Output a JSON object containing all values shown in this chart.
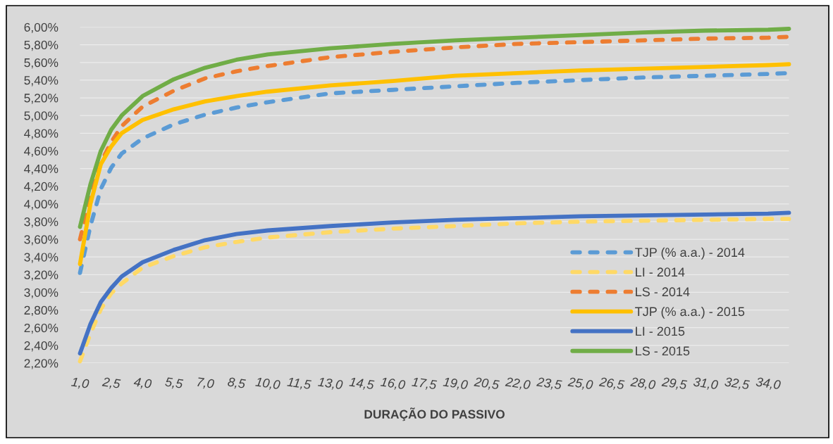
{
  "chart_data": {
    "type": "line",
    "xlabel": "DURAÇÃO DO PASSIVO",
    "x": [
      1,
      1.5,
      2,
      2.5,
      3,
      4,
      5.5,
      7,
      8.5,
      10,
      13,
      16,
      19,
      22,
      25,
      28,
      31,
      34,
      35
    ],
    "xlim": [
      1,
      35
    ],
    "xticks": [
      {
        "value": 1,
        "label": "1,0"
      },
      {
        "value": 2.5,
        "label": "2,5"
      },
      {
        "value": 4,
        "label": "4,0"
      },
      {
        "value": 5.5,
        "label": "5,5"
      },
      {
        "value": 7,
        "label": "7,0"
      },
      {
        "value": 8.5,
        "label": "8,5"
      },
      {
        "value": 10,
        "label": "10,0"
      },
      {
        "value": 11.5,
        "label": "11,5"
      },
      {
        "value": 13,
        "label": "13,0"
      },
      {
        "value": 14.5,
        "label": "14,5"
      },
      {
        "value": 16,
        "label": "16,0"
      },
      {
        "value": 17.5,
        "label": "17,5"
      },
      {
        "value": 19,
        "label": "19,0"
      },
      {
        "value": 20.5,
        "label": "20,5"
      },
      {
        "value": 22,
        "label": "22,0"
      },
      {
        "value": 23.5,
        "label": "23,5"
      },
      {
        "value": 25,
        "label": "25,0"
      },
      {
        "value": 26.5,
        "label": "26,5"
      },
      {
        "value": 28,
        "label": "28,0"
      },
      {
        "value": 29.5,
        "label": "29,5"
      },
      {
        "value": 31,
        "label": "31,0"
      },
      {
        "value": 32.5,
        "label": "32,5"
      },
      {
        "value": 34,
        "label": "34,0"
      }
    ],
    "ylim": [
      2.2,
      6.0
    ],
    "yticks": [
      {
        "value": 2.2,
        "label": "2,20%"
      },
      {
        "value": 2.4,
        "label": "2,40%"
      },
      {
        "value": 2.6,
        "label": "2,60%"
      },
      {
        "value": 2.8,
        "label": "2,80%"
      },
      {
        "value": 3.0,
        "label": "3,00%"
      },
      {
        "value": 3.2,
        "label": "3,20%"
      },
      {
        "value": 3.4,
        "label": "3,40%"
      },
      {
        "value": 3.6,
        "label": "3,60%"
      },
      {
        "value": 3.8,
        "label": "3,80%"
      },
      {
        "value": 4.0,
        "label": "4,00%"
      },
      {
        "value": 4.2,
        "label": "4,20%"
      },
      {
        "value": 4.4,
        "label": "4,40%"
      },
      {
        "value": 4.6,
        "label": "4,60%"
      },
      {
        "value": 4.8,
        "label": "4,80%"
      },
      {
        "value": 5.0,
        "label": "5,00%"
      },
      {
        "value": 5.2,
        "label": "5,20%"
      },
      {
        "value": 5.4,
        "label": "5,40%"
      },
      {
        "value": 5.6,
        "label": "5,60%"
      },
      {
        "value": 5.8,
        "label": "5,80%"
      },
      {
        "value": 6.0,
        "label": "6,00%"
      }
    ],
    "grid": "y",
    "legend": "bottom right",
    "series": [
      {
        "name": "TJP (% a.a.) - 2014",
        "color": "#5b9bd5",
        "line_style": "dashed",
        "values": [
          3.22,
          3.75,
          4.17,
          4.41,
          4.57,
          4.74,
          4.9,
          5.01,
          5.09,
          5.15,
          5.25,
          5.29,
          5.33,
          5.37,
          5.4,
          5.43,
          5.45,
          5.47,
          5.48
        ]
      },
      {
        "name": "LI - 2014",
        "color": "#ffd966",
        "line_style": "dashed",
        "values": [
          2.22,
          2.53,
          2.81,
          2.99,
          3.1,
          3.28,
          3.41,
          3.51,
          3.57,
          3.62,
          3.68,
          3.72,
          3.75,
          3.78,
          3.8,
          3.81,
          3.82,
          3.83,
          3.83
        ]
      },
      {
        "name": "LS - 2014",
        "color": "#ed7d31",
        "line_style": "dashed",
        "values": [
          3.6,
          4.08,
          4.47,
          4.7,
          4.88,
          5.1,
          5.28,
          5.42,
          5.5,
          5.56,
          5.66,
          5.72,
          5.77,
          5.81,
          5.83,
          5.85,
          5.87,
          5.88,
          5.89
        ]
      },
      {
        "name": "TJP (% a.a.) - 2015",
        "color": "#ffc000",
        "line_style": "solid",
        "values": [
          3.32,
          4.0,
          4.45,
          4.65,
          4.8,
          4.95,
          5.07,
          5.16,
          5.22,
          5.27,
          5.34,
          5.39,
          5.45,
          5.48,
          5.51,
          5.53,
          5.55,
          5.57,
          5.58
        ]
      },
      {
        "name": "LI - 2015",
        "color": "#4472c4",
        "line_style": "solid",
        "values": [
          2.31,
          2.64,
          2.89,
          3.05,
          3.18,
          3.34,
          3.48,
          3.59,
          3.66,
          3.7,
          3.75,
          3.79,
          3.82,
          3.84,
          3.86,
          3.87,
          3.88,
          3.89,
          3.9
        ]
      },
      {
        "name": "LS - 2015",
        "color": "#70ad47",
        "line_style": "solid",
        "values": [
          3.74,
          4.22,
          4.6,
          4.84,
          5.0,
          5.22,
          5.41,
          5.54,
          5.63,
          5.69,
          5.76,
          5.81,
          5.85,
          5.88,
          5.91,
          5.94,
          5.96,
          5.97,
          5.98
        ]
      }
    ]
  }
}
